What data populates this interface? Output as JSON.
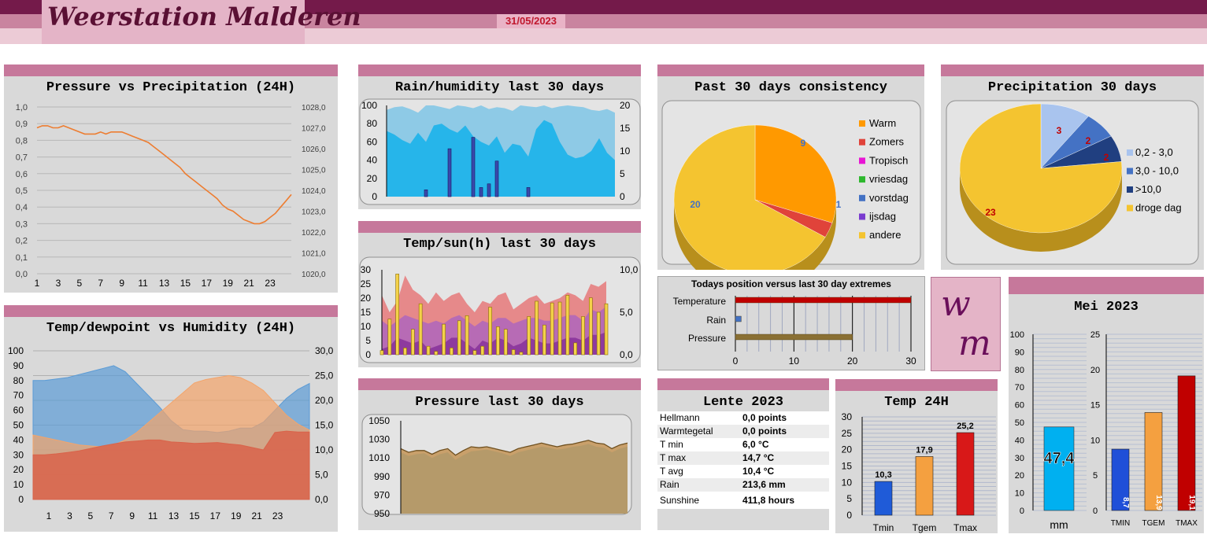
{
  "header": {
    "title": "Weerstation Malderen",
    "date": "31/05/2023"
  },
  "logo": {
    "letter1": "w",
    "letter2": "m"
  },
  "pressure_precip": {
    "title": "Pressure vs Precipitation (24H)"
  },
  "temp_dew": {
    "title": "Temp/dewpoint vs Humidity (24H)"
  },
  "rain_hum": {
    "title": "Rain/humidity last 30 days"
  },
  "temp_sun": {
    "title": "Temp/sun(h) last 30 days"
  },
  "pressure30": {
    "title": "Pressure last 30 days"
  },
  "consistency": {
    "title": "Past 30 days consistency"
  },
  "precip30": {
    "title": "Precipitation 30 days"
  },
  "position": {
    "title": "Todays position versus last 30 day extremes"
  },
  "lente": {
    "title": "Lente 2023",
    "rows": [
      {
        "label": "Hellmann",
        "value": "0,0",
        "unit": "points"
      },
      {
        "label": "Warmtegetal",
        "value": "0,0",
        "unit": "points"
      },
      {
        "label": "T min",
        "value": "6,0",
        "unit": "°C"
      },
      {
        "label": "T max",
        "value": "14,7",
        "unit": "°C"
      },
      {
        "label": "T avg",
        "value": "10,4",
        "unit": "°C"
      },
      {
        "label": "Rain",
        "value": "213,6",
        "unit": "mm"
      },
      {
        "label": "Sunshine",
        "value": "411,8",
        "unit": "hours"
      }
    ]
  },
  "temp24": {
    "title": "Temp 24H"
  },
  "mei": {
    "title": "Mei 2023"
  },
  "colors": {
    "orange": "#ed7d31",
    "blue": "#5b9bd5",
    "pink": "#c6789b",
    "maroon": "#741a4a",
    "yellow": "#f4c430",
    "red": "#c00000"
  },
  "chart_data": [
    {
      "id": "pressure_precip",
      "type": "line",
      "x_ticks": [
        "1",
        "3",
        "5",
        "7",
        "9",
        "11",
        "13",
        "15",
        "17",
        "19",
        "21",
        "23"
      ],
      "y_left": {
        "ticks": [
          "0,0",
          "0,1",
          "0,2",
          "0,3",
          "0,4",
          "0,5",
          "0,6",
          "0,7",
          "0,8",
          "0,9",
          "1,0"
        ],
        "range": [
          0,
          1
        ]
      },
      "y_right": {
        "ticks": [
          "1020,0",
          "1021,0",
          "1022,0",
          "1023,0",
          "1024,0",
          "1025,0",
          "1026,0",
          "1027,0",
          "1028,0"
        ],
        "range": [
          1020,
          1028
        ]
      },
      "series": [
        {
          "axis": "right",
          "color": "#ed7d31",
          "x": [
            1,
            1.5,
            2,
            2.5,
            3,
            3.5,
            4,
            4.5,
            5,
            5.5,
            6,
            6.5,
            7,
            7.5,
            8,
            8.5,
            9,
            9.5,
            10,
            10.5,
            11,
            11.5,
            12,
            12.5,
            13,
            13.5,
            14,
            14.5,
            15,
            15.5,
            16,
            16.5,
            17,
            17.5,
            18,
            18.5,
            19,
            19.5,
            20,
            20.5,
            21,
            21.5,
            22,
            22.5,
            23,
            23.5,
            24,
            24.5,
            25
          ],
          "y": [
            1027.0,
            1027.1,
            1027.1,
            1027.0,
            1027.0,
            1027.1,
            1027.0,
            1026.9,
            1026.8,
            1026.7,
            1026.7,
            1026.7,
            1026.8,
            1026.7,
            1026.8,
            1026.8,
            1026.8,
            1026.7,
            1026.6,
            1026.5,
            1026.4,
            1026.3,
            1026.1,
            1025.9,
            1025.7,
            1025.5,
            1025.3,
            1025.1,
            1024.8,
            1024.6,
            1024.4,
            1024.2,
            1024.0,
            1023.8,
            1023.6,
            1023.3,
            1023.1,
            1023.0,
            1022.8,
            1022.6,
            1022.5,
            1022.4,
            1022.4,
            1022.5,
            1022.7,
            1022.9,
            1023.2,
            1023.5,
            1023.8
          ]
        }
      ]
    },
    {
      "id": "temp_dew",
      "type": "area",
      "x_ticks": [
        "1",
        "3",
        "5",
        "7",
        "9",
        "11",
        "13",
        "15",
        "17",
        "19",
        "21",
        "23"
      ],
      "y_left": {
        "ticks": [
          "0",
          "10",
          "20",
          "30",
          "40",
          "50",
          "60",
          "70",
          "80",
          "90",
          "100"
        ],
        "range": [
          0,
          100
        ]
      },
      "y_right": {
        "ticks": [
          "0,0",
          "5,0",
          "10,0",
          "15,0",
          "20,0",
          "25,0",
          "30,0"
        ],
        "range": [
          0,
          30
        ]
      },
      "series": [
        {
          "name": "humidity",
          "axis": "left",
          "color": "#5b9bd5",
          "x": [
            1,
            2,
            3,
            4,
            5,
            6,
            7,
            8,
            9,
            10,
            11,
            12,
            13,
            14,
            15,
            16,
            17,
            18,
            19,
            20,
            21,
            22,
            23,
            24,
            25
          ],
          "y": [
            80,
            80,
            81,
            82,
            84,
            86,
            88,
            90,
            86,
            78,
            70,
            62,
            53,
            47,
            46,
            46,
            45,
            46,
            48,
            48,
            52,
            60,
            68,
            74,
            78
          ]
        },
        {
          "name": "temperature",
          "axis": "right",
          "color": "#f4a46a",
          "x": [
            1,
            2,
            3,
            4,
            5,
            6,
            7,
            8,
            9,
            10,
            11,
            12,
            13,
            14,
            15,
            16,
            17,
            18,
            19,
            20,
            21,
            22,
            23,
            24,
            25
          ],
          "y": [
            13,
            12.5,
            12,
            11.5,
            11,
            10.8,
            10.6,
            11,
            12,
            13.5,
            15.5,
            17.5,
            19.5,
            21.5,
            23.5,
            24.2,
            24.6,
            25,
            24.6,
            23.5,
            22,
            19.5,
            17,
            15.2,
            14
          ]
        },
        {
          "name": "dewpoint",
          "axis": "right",
          "color": "#d9634a",
          "x": [
            1,
            2,
            3,
            4,
            5,
            6,
            7,
            8,
            9,
            10,
            11,
            12,
            13,
            14,
            15,
            16,
            17,
            18,
            19,
            20,
            21,
            22,
            23,
            24,
            25
          ],
          "y": [
            9,
            9,
            9.2,
            9.5,
            9.8,
            10.3,
            10.8,
            11.2,
            11.6,
            11.8,
            12,
            12,
            11.6,
            11.5,
            11.3,
            11.4,
            11.5,
            11.2,
            11,
            10.5,
            10,
            13.5,
            13.8,
            13.6,
            13.6
          ]
        }
      ]
    },
    {
      "id": "rain_hum",
      "type": "area+bar",
      "y_left": {
        "ticks": [
          "0",
          "20",
          "40",
          "60",
          "80",
          "100"
        ],
        "range": [
          0,
          100
        ]
      },
      "y_right": {
        "ticks": [
          "0",
          "5",
          "10",
          "15",
          "20"
        ],
        "range": [
          0,
          20
        ]
      },
      "humidity_max": [
        95,
        98,
        99,
        96,
        92,
        100,
        100,
        98,
        96,
        100,
        99,
        97,
        100,
        96,
        98,
        97,
        94,
        100,
        99,
        98,
        100,
        97,
        99,
        100,
        99,
        98,
        95,
        94,
        96,
        92
      ],
      "humidity_min": [
        72,
        68,
        62,
        58,
        70,
        60,
        78,
        80,
        74,
        70,
        78,
        66,
        60,
        56,
        66,
        48,
        58,
        56,
        44,
        74,
        84,
        80,
        60,
        46,
        42,
        44,
        50,
        64,
        48,
        40
      ],
      "rain": [
        0,
        0,
        0,
        0,
        0,
        1.5,
        0,
        0,
        10.5,
        0,
        0,
        13,
        2,
        2.8,
        7.8,
        0,
        0,
        0,
        2,
        0,
        0,
        0,
        0,
        0,
        0,
        0,
        0,
        0,
        0,
        0
      ]
    },
    {
      "id": "temp_sun",
      "type": "area+bar",
      "y_left": {
        "ticks": [
          "0",
          "5",
          "10",
          "15",
          "20",
          "25",
          "30"
        ],
        "range": [
          0,
          30
        ]
      },
      "y_right": {
        "ticks": [
          "0,0",
          "5,0",
          "10,0"
        ],
        "range": [
          0,
          10
        ]
      },
      "tmax": [
        21,
        15,
        19,
        28,
        23,
        21,
        18,
        22,
        19,
        21,
        22,
        18,
        15,
        19,
        18,
        21,
        22,
        16,
        18,
        20,
        21,
        18,
        19,
        20,
        22,
        21,
        19,
        25,
        24,
        26
      ],
      "tavg": [
        12,
        10,
        12,
        14,
        13,
        12,
        11,
        12,
        11,
        13,
        14,
        12,
        10,
        12,
        11,
        13,
        13,
        11,
        12,
        13,
        13,
        12,
        12,
        13,
        14,
        14,
        12,
        16,
        15,
        17
      ],
      "tmin": [
        2,
        3,
        6,
        5,
        4,
        5,
        2,
        3,
        4,
        6,
        6,
        4,
        2,
        5,
        4,
        6,
        5,
        3,
        4,
        6,
        5,
        4,
        4,
        5,
        6,
        6,
        5,
        7,
        7,
        8
      ],
      "sun": [
        0.5,
        4.2,
        9.5,
        0.8,
        3,
        6,
        1,
        0.4,
        3.6,
        0.8,
        4,
        4.6,
        0.5,
        1,
        5.6,
        3.3,
        3,
        0.6,
        0.3,
        4.5,
        6.3,
        3.5,
        6.1,
        6.2,
        7,
        1.4,
        4.5,
        6.7,
        5,
        6
      ]
    },
    {
      "id": "pressure30",
      "type": "area",
      "y": {
        "ticks": [
          "950",
          "970",
          "990",
          "1010",
          "1030",
          "1050"
        ],
        "range": [
          950,
          1050
        ]
      },
      "pmax": [
        1020,
        1016,
        1018,
        1018,
        1014,
        1018,
        1020,
        1013,
        1018,
        1022,
        1021,
        1022,
        1020,
        1018,
        1016,
        1020,
        1022,
        1024,
        1026,
        1024,
        1022,
        1024,
        1025,
        1027,
        1029,
        1026,
        1025,
        1020,
        1024,
        1026
      ],
      "pmin": [
        1016,
        1012,
        1014,
        1015,
        1010,
        1014,
        1016,
        1008,
        1013,
        1017,
        1018,
        1019,
        1017,
        1015,
        1012,
        1016,
        1018,
        1020,
        1022,
        1021,
        1019,
        1020,
        1022,
        1023,
        1025,
        1022,
        1021,
        1016,
        1020,
        1022
      ]
    },
    {
      "id": "consistency",
      "type": "pie",
      "labels": [
        "Warm",
        "Zomers",
        "Tropisch",
        "vriesdag",
        "vorstdag",
        "ijsdag",
        "andere"
      ],
      "values": [
        9,
        1,
        0,
        0,
        0,
        0,
        20
      ],
      "colors": [
        "#ff9900",
        "#e0433a",
        "#e815d4",
        "#2eb82e",
        "#4472c4",
        "#7a3bcf",
        "#f4c430"
      ],
      "shown_labels": [
        "9",
        "1",
        "20"
      ]
    },
    {
      "id": "precip30",
      "type": "pie",
      "labels": [
        "0,2 - 3,0",
        "3,0 - 10,0",
        ">10,0",
        "droge dag"
      ],
      "values": [
        3,
        2,
        2,
        23
      ],
      "colors": [
        "#a9c4ee",
        "#4472c4",
        "#203f80",
        "#f4c430"
      ],
      "shown_labels": [
        "3",
        "2",
        "2",
        "23"
      ]
    },
    {
      "id": "position",
      "type": "bar",
      "categories": [
        "Temperature",
        "Rain",
        "Pressure"
      ],
      "values": [
        30,
        1,
        20
      ],
      "colors": [
        "#c00000",
        "#4472c4",
        "#8a7034"
      ],
      "x_ticks": [
        "0",
        "10",
        "20",
        "30"
      ],
      "xlim": [
        0,
        30
      ]
    },
    {
      "id": "temp24",
      "type": "bar",
      "categories": [
        "Tmin",
        "Tgem",
        "Tmax"
      ],
      "values": [
        10.3,
        17.9,
        25.2
      ],
      "labels": [
        "10,3",
        "17,9",
        "25,2"
      ],
      "colors": [
        "#1f5bd8",
        "#f4a040",
        "#d81818"
      ],
      "y": {
        "ticks": [
          "0",
          "5",
          "10",
          "15",
          "20",
          "25",
          "30"
        ],
        "range": [
          0,
          30
        ]
      }
    },
    {
      "id": "mei",
      "type": "bar",
      "rain": {
        "value": 47.4,
        "label": "47,4",
        "unit": "mm",
        "color": "#00b0f0",
        "ticks": [
          "0",
          "10",
          "20",
          "30",
          "40",
          "50",
          "60",
          "70",
          "80",
          "90",
          "100"
        ],
        "range": [
          0,
          100
        ]
      },
      "temps": {
        "categories": [
          "TMIN",
          "TGEM",
          "TMAX"
        ],
        "values": [
          8.7,
          13.9,
          19.1
        ],
        "labels": [
          "8,7",
          "13,9",
          "19,1"
        ],
        "colors": [
          "#1f4fd8",
          "#f4a040",
          "#c00000"
        ],
        "ticks": [
          "0",
          "5",
          "10",
          "15",
          "20",
          "25"
        ],
        "range": [
          0,
          25
        ]
      }
    }
  ]
}
